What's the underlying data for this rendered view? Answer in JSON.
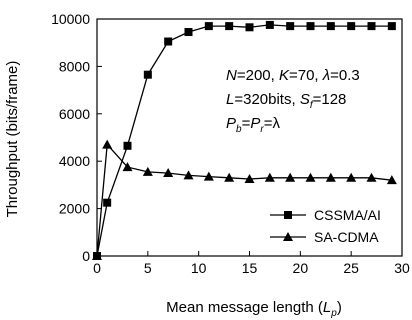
{
  "chart_data": {
    "type": "line",
    "title": "",
    "xlabel": "Mean message length (",
    "xlabel_symbol": "L",
    "xlabel_sub": "p",
    "xlabel_close": ")",
    "ylabel": "Throughput (bits/frame)",
    "xlim": [
      0,
      30
    ],
    "ylim": [
      0,
      10000
    ],
    "xticks": [
      0,
      5,
      10,
      15,
      20,
      25,
      30
    ],
    "yticks": [
      0,
      2000,
      4000,
      6000,
      8000,
      10000
    ],
    "grid": false,
    "legend_position": "bottom-right",
    "series": [
      {
        "name": "CSSMA/AI",
        "marker": "square",
        "x": [
          0,
          1,
          3,
          5,
          7,
          9,
          11,
          13,
          15,
          17,
          19,
          21,
          23,
          25,
          27,
          29
        ],
        "y": [
          0,
          2250,
          4650,
          7650,
          9050,
          9450,
          9700,
          9700,
          9650,
          9750,
          9700,
          9700,
          9700,
          9700,
          9700,
          9700
        ]
      },
      {
        "name": "SA-CDMA",
        "marker": "triangle",
        "x": [
          0,
          1,
          3,
          5,
          7,
          9,
          11,
          13,
          15,
          17,
          19,
          21,
          23,
          25,
          27,
          29
        ],
        "y": [
          0,
          4700,
          3750,
          3550,
          3500,
          3400,
          3350,
          3300,
          3250,
          3300,
          3300,
          3300,
          3300,
          3300,
          3300,
          3200
        ]
      }
    ],
    "annotations": [
      {
        "symbol": "N",
        "eq": "=200, ",
        "symbol2": "K",
        "eq2": "=70, ",
        "symbol3": "λ",
        "eq3": "=0.3"
      },
      {
        "symbol": "L",
        "eq": "=320bits, ",
        "symbol2": "S",
        "sub2": "f",
        "eq2": "=128"
      },
      {
        "symbol": "P",
        "sub": "b",
        "eq": "=",
        "symbol2": "P",
        "sub2": "r",
        "eq2": "=λ"
      }
    ]
  }
}
